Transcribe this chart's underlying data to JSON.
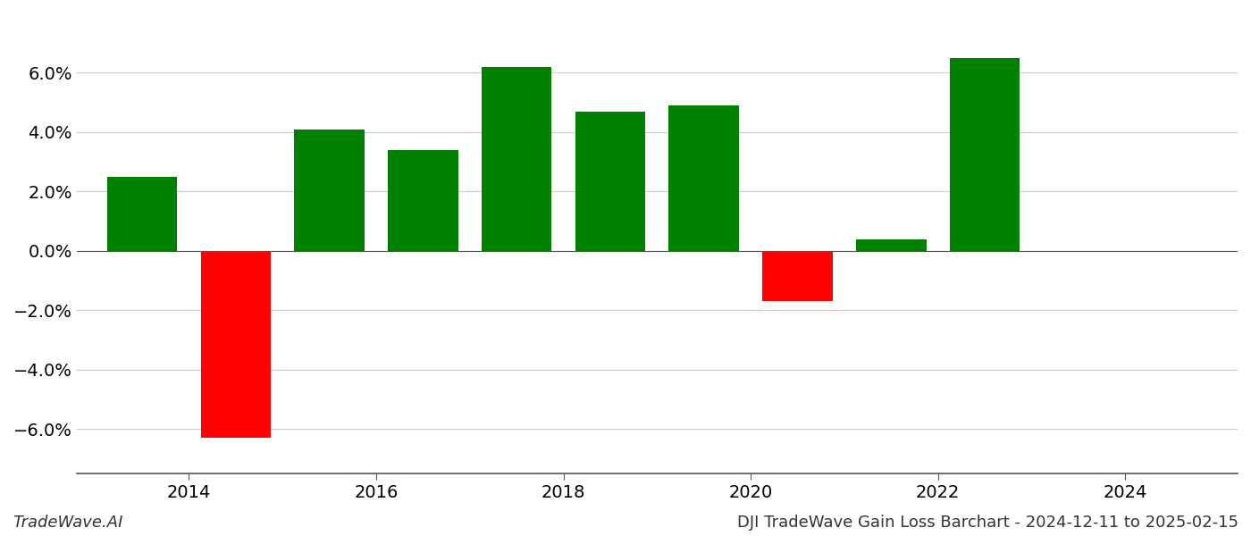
{
  "years": [
    2013.5,
    2014.5,
    2015.5,
    2016.5,
    2017.5,
    2018.5,
    2019.5,
    2020.5,
    2021.5,
    2022.5,
    2023.5
  ],
  "values": [
    0.025,
    -0.063,
    0.041,
    0.034,
    0.062,
    0.047,
    0.049,
    -0.017,
    0.004,
    0.065,
    0.0
  ],
  "bar_colors": [
    "#008000",
    "#ff0000",
    "#008000",
    "#008000",
    "#008000",
    "#008000",
    "#008000",
    "#ff0000",
    "#008000",
    "#008000",
    "#008000"
  ],
  "ylim": [
    -0.075,
    0.08
  ],
  "background_color": "#ffffff",
  "footer_left": "TradeWave.AI",
  "footer_right": "DJI TradeWave Gain Loss Barchart - 2024-12-11 to 2025-02-15",
  "grid_color": "#cccccc",
  "tick_fontsize": 14,
  "footer_fontsize": 13,
  "xtick_positions": [
    2014,
    2016,
    2018,
    2020,
    2022,
    2024
  ],
  "xlim": [
    2012.8,
    2025.2
  ],
  "yticks": [
    -0.06,
    -0.04,
    -0.02,
    0.0,
    0.02,
    0.04,
    0.06
  ],
  "bar_width": 0.75
}
